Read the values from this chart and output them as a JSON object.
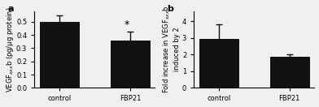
{
  "panel_a": {
    "categories": [
      "control",
      "FBP21"
    ],
    "values": [
      0.5,
      0.36
    ],
    "errors": [
      0.048,
      0.068
    ],
    "ylabel": "VEGF$_{xxx}$b (pg/μg protein)",
    "ylim": [
      0,
      0.58
    ],
    "yticks": [
      0.0,
      0.1,
      0.2,
      0.3,
      0.4,
      0.5
    ],
    "yticklabels": [
      "0.0",
      "0.1",
      "0.2",
      "0.3",
      "0.4",
      "0.5"
    ],
    "label": "a",
    "asterisk_on": 1
  },
  "panel_b": {
    "categories": [
      "control",
      "FBP21"
    ],
    "values": [
      2.95,
      1.85
    ],
    "errors": [
      0.88,
      0.15
    ],
    "ylabel": "Fold increase in VEGF$_{xxx}$b\ninduced by 2",
    "ylim": [
      0,
      4.6
    ],
    "yticks": [
      0,
      1,
      2,
      3,
      4
    ],
    "yticklabels": [
      "0",
      "1",
      "2",
      "3",
      "4"
    ],
    "label": "b",
    "asterisk_on": -1
  },
  "bar_color": "#111111",
  "bar_width": 0.55,
  "bar_edge_color": "#111111",
  "error_color": "#111111",
  "error_capsize": 3,
  "error_linewidth": 1.0,
  "bg_color": "#f0f0f0",
  "label_fontsize": 7,
  "tick_fontsize": 6,
  "ylabel_fontsize": 6,
  "panel_label_fontsize": 8
}
